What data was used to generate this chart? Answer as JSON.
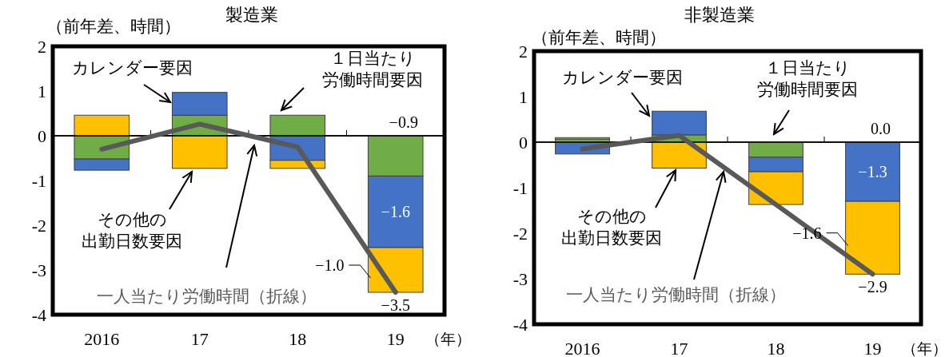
{
  "chart_data": [
    {
      "type": "bar",
      "title": "製造業",
      "ylabel": "（前年差、時間）",
      "xlabel": "（年）",
      "categories": [
        "2016",
        "17",
        "18",
        "19"
      ],
      "stacked": true,
      "ylim": [
        -4,
        2
      ],
      "yticks": [
        -4,
        -3,
        -2,
        -1,
        0,
        1,
        2
      ],
      "series": [
        {
          "name": "１日当たり労働時間要因",
          "color": "#70ad47",
          "values": [
            -0.52,
            0.46,
            0.46,
            -0.9
          ],
          "value_labels": [
            null,
            null,
            null,
            "−0.9"
          ]
        },
        {
          "name": "カレンダー要因",
          "color": "#4472c4",
          "values": [
            -0.25,
            0.51,
            -0.55,
            -1.6
          ],
          "value_labels": [
            null,
            null,
            null,
            "−1.6"
          ]
        },
        {
          "name": "その他の出勤日数要因",
          "color": "#ffc000",
          "values": [
            0.46,
            -0.73,
            -0.18,
            -1.0
          ],
          "value_labels": [
            null,
            null,
            null,
            "−1.0"
          ]
        },
        {
          "name": "一人当たり労働時間（折線）",
          "type": "line",
          "color": "#595959",
          "values": [
            -0.3,
            0.26,
            -0.25,
            -3.5
          ],
          "value_labels": [
            null,
            null,
            null,
            "−3.5"
          ]
        }
      ]
    },
    {
      "type": "bar",
      "title": "非製造業",
      "ylabel": "（前年差、時間）",
      "xlabel": "（年）",
      "categories": [
        "2016",
        "17",
        "18",
        "19"
      ],
      "stacked": true,
      "ylim": [
        -4,
        2
      ],
      "yticks": [
        -4,
        -3,
        -2,
        -1,
        0,
        1,
        2
      ],
      "series": [
        {
          "name": "１日当たり労働時間要因",
          "color": "#70ad47",
          "values": [
            0.07,
            0.16,
            -0.33,
            0.0
          ],
          "value_labels": [
            null,
            null,
            null,
            "0.0"
          ]
        },
        {
          "name": "カレンダー要因",
          "color": "#4472c4",
          "values": [
            -0.26,
            0.52,
            -0.32,
            -1.3
          ],
          "value_labels": [
            null,
            null,
            null,
            "−1.3"
          ]
        },
        {
          "name": "その他の出勤日数要因",
          "color": "#ffc000",
          "values": [
            0.03,
            -0.57,
            -0.72,
            -1.6
          ],
          "value_labels": [
            null,
            null,
            null,
            "−1.6"
          ]
        },
        {
          "name": "一人当たり労働時間（折線）",
          "type": "line",
          "color": "#595959",
          "values": [
            -0.15,
            0.15,
            -1.37,
            -2.9
          ],
          "value_labels": [
            null,
            null,
            null,
            "−2.9"
          ]
        }
      ]
    }
  ]
}
